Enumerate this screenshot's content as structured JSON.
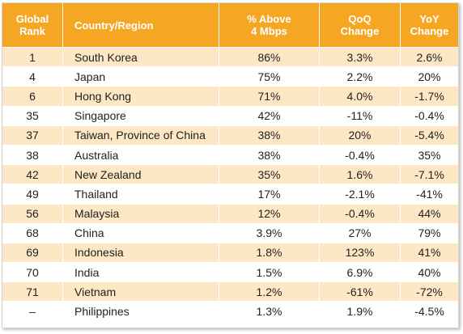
{
  "table": {
    "headers": [
      "Global\nRank",
      "Country/Region",
      "% Above\n4 Mbps",
      "QoQ\nChange",
      "YoY\nChange"
    ],
    "rows": [
      [
        "1",
        "South Korea",
        "86%",
        "3.3%",
        "2.6%"
      ],
      [
        "4",
        "Japan",
        "75%",
        "2.2%",
        "20%"
      ],
      [
        "6",
        "Hong Kong",
        "71%",
        "4.0%",
        "-1.7%"
      ],
      [
        "35",
        "Singapore",
        "42%",
        "-11%",
        "-0.4%"
      ],
      [
        "37",
        "Taiwan, Province of China",
        "38%",
        "20%",
        "-5.4%"
      ],
      [
        "38",
        "Australia",
        "38%",
        "-0.4%",
        "35%"
      ],
      [
        "42",
        "New Zealand",
        "35%",
        "1.6%",
        "-7.1%"
      ],
      [
        "49",
        "Thailand",
        "17%",
        "-2.1%",
        "-41%"
      ],
      [
        "56",
        "Malaysia",
        "12%",
        "-0.4%",
        "44%"
      ],
      [
        "68",
        "China",
        "3.9%",
        "27%",
        "79%"
      ],
      [
        "69",
        "Indonesia",
        "1.8%",
        "123%",
        "41%"
      ],
      [
        "70",
        "India",
        "1.5%",
        "6.9%",
        "40%"
      ],
      [
        "71",
        "Vietnam",
        "1.2%",
        "-61%",
        "-72%"
      ],
      [
        "–",
        "Philippines",
        "1.3%",
        "1.9%",
        "-4.5%"
      ]
    ]
  },
  "colors": {
    "header_bg": "#f5a623",
    "stripe_bg": "#fde7c4",
    "plain_bg": "#ffffff"
  }
}
